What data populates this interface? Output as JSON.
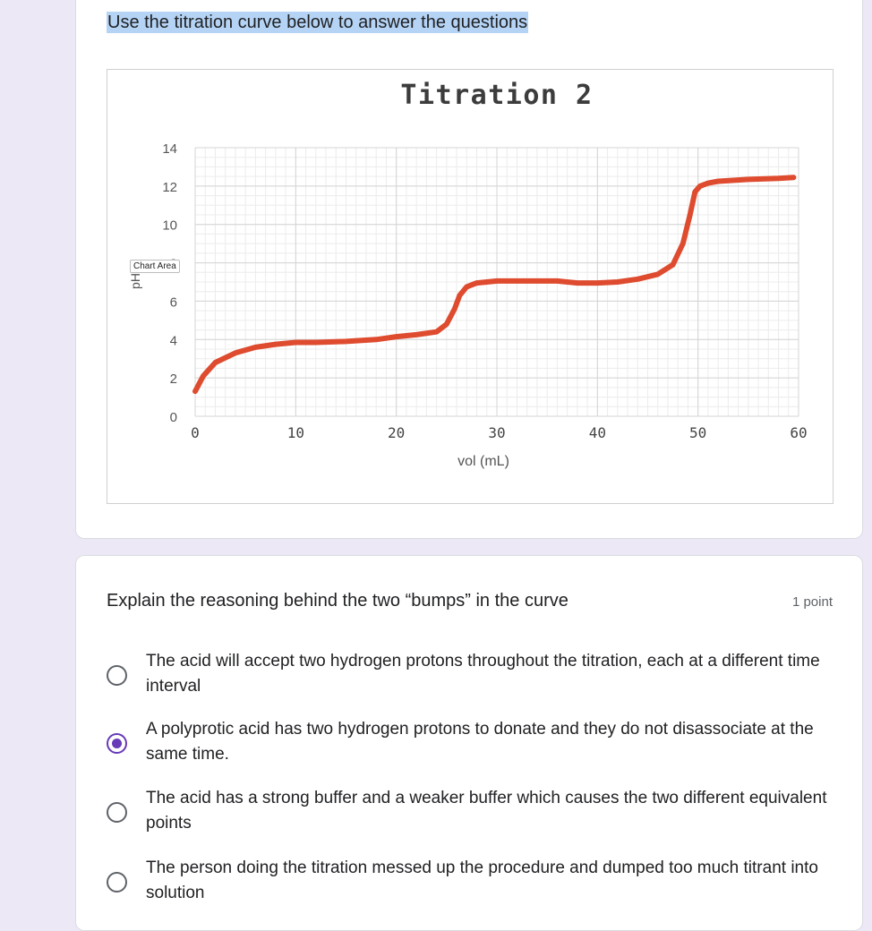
{
  "intro_text": "Use the titration curve below to answer the questions",
  "chart_area_tag": "Chart Area",
  "chart_data": {
    "type": "line",
    "title": "Titration 2",
    "xlabel": "vol (mL)",
    "ylabel": "pH",
    "xlim": [
      0,
      60
    ],
    "ylim": [
      0,
      14
    ],
    "xticks": [
      0,
      10,
      20,
      30,
      40,
      50,
      60
    ],
    "yticks": [
      0,
      2,
      4,
      6,
      8,
      10,
      12,
      14
    ],
    "grid": true,
    "line_color": "#de4b2f",
    "series": [
      {
        "x": [
          0,
          0.8,
          2,
          4,
          6,
          8,
          10,
          12,
          15,
          18,
          20,
          22,
          24,
          25,
          25.8,
          26.3,
          27,
          28,
          30,
          33,
          36,
          38,
          40,
          42,
          44,
          46,
          47.5,
          48.5,
          49.2,
          49.7,
          50.2,
          51,
          52,
          55,
          58,
          59.5
        ],
        "y": [
          1.3,
          2.1,
          2.8,
          3.3,
          3.6,
          3.75,
          3.85,
          3.85,
          3.9,
          4.0,
          4.15,
          4.25,
          4.4,
          4.8,
          5.6,
          6.3,
          6.75,
          6.95,
          7.05,
          7.05,
          7.05,
          6.95,
          6.95,
          7.0,
          7.15,
          7.4,
          7.9,
          9.0,
          10.5,
          11.7,
          12.0,
          12.15,
          12.25,
          12.35,
          12.4,
          12.45
        ]
      }
    ]
  },
  "question": {
    "title": "Explain the reasoning behind the two “bumps” in the curve",
    "points": "1 point",
    "options": [
      {
        "text": "The acid will accept two hydrogen protons throughout the titration, each at a different time interval",
        "selected": false
      },
      {
        "text": "A polyprotic acid has two hydrogen protons to donate and they do not disassociate at the same time.",
        "selected": true
      },
      {
        "text": "The acid has a strong buffer and a weaker buffer which causes the two different equivalent points",
        "selected": false
      },
      {
        "text": "The person doing the titration messed up the procedure and dumped too much titrant into solution",
        "selected": false
      }
    ]
  }
}
